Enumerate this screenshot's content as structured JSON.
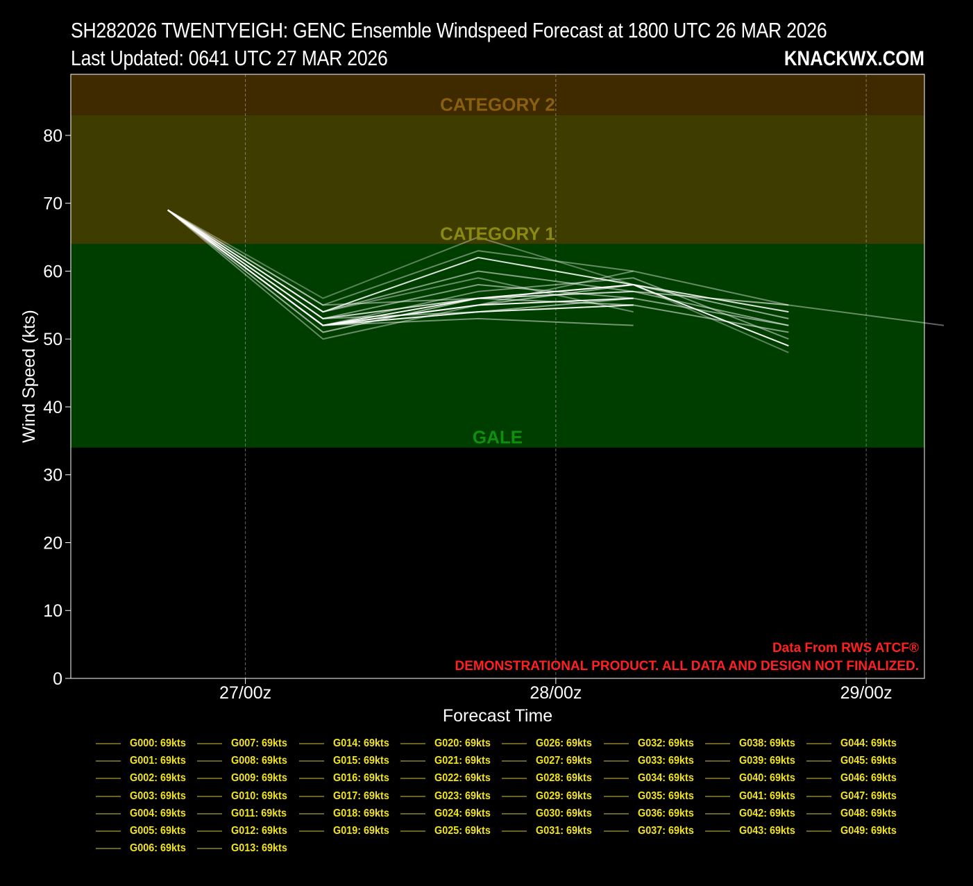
{
  "header": {
    "title_line1": "SH282026 TWENTYEIGH: GENC Ensemble Windspeed Forecast at 1800 UTC 26 MAR 2026",
    "title_line2": "Last Updated: 0641 UTC 27 MAR 2026",
    "brand": "KNACKWX.COM"
  },
  "colors": {
    "background": "#000000",
    "category2_band": "#3f2a00",
    "category1_band": "#3f3c00",
    "gale_band": "#003e00",
    "category2_label": "#8a5f10",
    "category1_label": "#8a8a10",
    "gale_label": "#0f8f0f",
    "disclaimer": "#ff2020",
    "legend_text": "#f2e41a",
    "legend_swatch": "#6b6421"
  },
  "chart_data": {
    "type": "line",
    "title": "SH282026 TWENTYEIGH: GENC Ensemble Windspeed Forecast at 1800 UTC 26 MAR 2026",
    "xlabel": "Forecast Time",
    "ylabel": "Wind Speed (kts)",
    "x_unit": "hours from 1800 UTC 26 MAR 2026",
    "xlim": [
      -7.5,
      58.5
    ],
    "ylim": [
      0,
      89
    ],
    "x_ticks": [
      {
        "value": 6,
        "label": "27/00z"
      },
      {
        "value": 30,
        "label": "28/00z"
      },
      {
        "value": 54,
        "label": "29/00z"
      }
    ],
    "y_ticks": [
      0,
      10,
      20,
      30,
      40,
      50,
      60,
      70,
      80
    ],
    "grid": "vertical dashed at x ticks",
    "bands": [
      {
        "label": "CATEGORY 2",
        "from": 83,
        "to": 89
      },
      {
        "label": "CATEGORY 1",
        "from": 64,
        "to": 83
      },
      {
        "label": "GALE",
        "from": 34,
        "to": 64
      }
    ],
    "x": [
      0,
      12,
      24,
      36,
      48,
      60
    ],
    "series": [
      {
        "values": [
          69,
          56,
          65,
          58,
          48,
          null
        ],
        "opacity": 0.35
      },
      {
        "values": [
          69,
          55,
          63,
          60,
          55,
          52
        ],
        "opacity": 0.4
      },
      {
        "values": [
          69,
          54,
          62,
          58,
          54,
          null
        ],
        "opacity": 0.85
      },
      {
        "values": [
          69,
          53,
          58,
          56,
          52,
          null
        ],
        "opacity": 0.5
      },
      {
        "values": [
          69,
          52,
          56,
          58,
          49,
          null
        ],
        "opacity": 0.95
      },
      {
        "values": [
          69,
          52,
          55,
          58,
          53,
          null
        ],
        "opacity": 0.55
      },
      {
        "values": [
          69,
          53,
          54,
          55,
          51,
          null
        ],
        "opacity": 0.5
      },
      {
        "values": [
          69,
          51,
          56,
          57,
          55,
          null
        ],
        "opacity": 0.6
      },
      {
        "values": [
          69,
          52,
          57,
          59,
          50,
          null
        ],
        "opacity": 0.45
      },
      {
        "values": [
          69,
          54,
          60,
          57,
          52,
          null
        ],
        "opacity": 0.5
      },
      {
        "values": [
          69,
          52,
          53,
          52,
          null,
          null
        ],
        "opacity": 0.45
      },
      {
        "values": [
          69,
          53,
          56,
          58,
          null,
          null
        ],
        "opacity": 0.5
      },
      {
        "values": [
          69,
          52,
          54,
          56,
          null,
          null
        ],
        "opacity": 0.55
      },
      {
        "values": [
          69,
          50,
          55,
          60,
          null,
          null
        ],
        "opacity": 0.4
      },
      {
        "values": [
          69,
          54,
          59,
          54,
          null,
          null
        ],
        "opacity": 0.4
      },
      {
        "values": [
          69,
          55,
          56,
          57,
          null,
          null
        ],
        "opacity": 0.45
      },
      {
        "values": [
          69,
          52,
          54,
          55,
          null,
          null
        ],
        "opacity": 0.8
      },
      {
        "values": [
          69,
          53,
          56,
          55,
          null,
          null
        ],
        "opacity": 0.55
      },
      {
        "values": [
          69,
          52,
          55,
          56,
          null,
          null
        ],
        "opacity": 0.95
      }
    ],
    "annotations": [
      "Data From RWS ATCF®",
      "DEMONSTRATIONAL PRODUCT. ALL DATA AND DESIGN NOT FINALIZED."
    ],
    "legend": [
      "G000: 69kts",
      "G001: 69kts",
      "G002: 69kts",
      "G003: 69kts",
      "G004: 69kts",
      "G005: 69kts",
      "G006: 69kts",
      "G007: 69kts",
      "G008: 69kts",
      "G009: 69kts",
      "G010: 69kts",
      "G011: 69kts",
      "G012: 69kts",
      "G013: 69kts",
      "G014: 69kts",
      "G015: 69kts",
      "G016: 69kts",
      "G017: 69kts",
      "G018: 69kts",
      "G019: 69kts",
      "G020: 69kts",
      "G021: 69kts",
      "G022: 69kts",
      "G023: 69kts",
      "G024: 69kts",
      "G025: 69kts",
      "G026: 69kts",
      "G027: 69kts",
      "G028: 69kts",
      "G029: 69kts",
      "G030: 69kts",
      "G031: 69kts",
      "G032: 69kts",
      "G033: 69kts",
      "G034: 69kts",
      "G035: 69kts",
      "G036: 69kts",
      "G037: 69kts",
      "G038: 69kts",
      "G039: 69kts",
      "G040: 69kts",
      "G041: 69kts",
      "G042: 69kts",
      "G043: 69kts",
      "G044: 69kts",
      "G045: 69kts",
      "G046: 69kts",
      "G047: 69kts",
      "G048: 69kts",
      "G049: 69kts"
    ],
    "legend_columns": [
      7,
      7,
      6,
      6,
      6,
      6,
      6,
      6
    ]
  }
}
